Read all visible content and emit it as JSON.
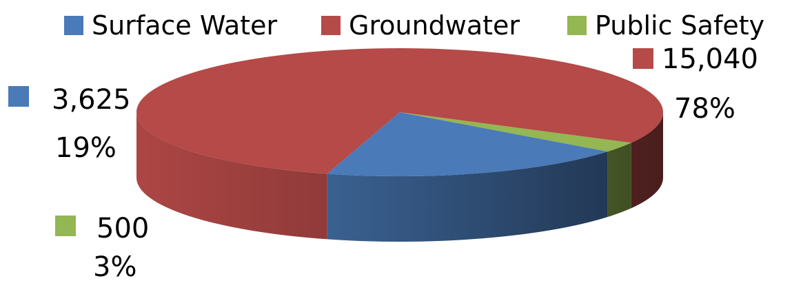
{
  "chart_data": {
    "type": "pie",
    "title": "",
    "categories": [
      "Surface Water",
      "Groundwater",
      "Public Safety"
    ],
    "values": [
      3625,
      15040,
      500
    ],
    "value_labels": [
      "3,625",
      "15,040",
      "500"
    ],
    "percent_labels": [
      "19%",
      "78%",
      "3%"
    ],
    "colors": [
      "#4a7ab8",
      "#b54a48",
      "#94b653"
    ],
    "legend": "top",
    "style": "3d"
  }
}
